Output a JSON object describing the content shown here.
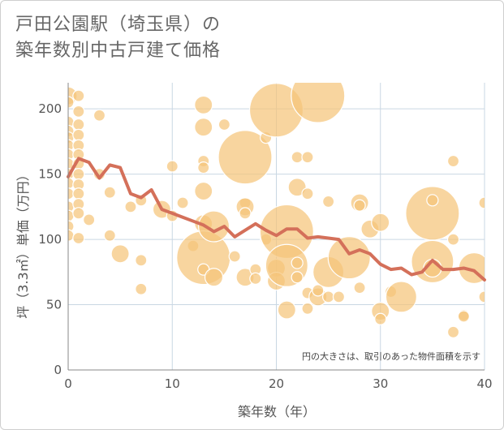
{
  "title_line1": "戸田公園駅（埼玉県）の",
  "title_line2": "築年数別中古戸建て価格",
  "chart_data": {
    "type": "scatter",
    "xlabel": "築年数（年）",
    "ylabel": "坪（3.3㎡）単価（万円）",
    "xlim": [
      0,
      40
    ],
    "ylim": [
      0,
      220
    ],
    "xticks": [
      "0",
      "10",
      "20",
      "30",
      "40"
    ],
    "yticks": [
      "0",
      "50",
      "100",
      "150",
      "200"
    ],
    "note": "円の大きさは、取引のあった物件面積を示す",
    "colors": {
      "bubble": "#f5c57a",
      "bubble_stroke": "#ffffff",
      "line": "#d4705a",
      "grid": "#c9d7e3"
    },
    "bubbles": [
      {
        "x": 0,
        "y": 210,
        "s": 2
      },
      {
        "x": 0,
        "y": 205,
        "s": 1
      },
      {
        "x": 0,
        "y": 190,
        "s": 1
      },
      {
        "x": 0,
        "y": 183,
        "s": 1
      },
      {
        "x": 0,
        "y": 178,
        "s": 1
      },
      {
        "x": 0,
        "y": 172,
        "s": 1
      },
      {
        "x": 0,
        "y": 165,
        "s": 1
      },
      {
        "x": 0,
        "y": 158,
        "s": 1
      },
      {
        "x": 0,
        "y": 150,
        "s": 1
      },
      {
        "x": 0,
        "y": 143,
        "s": 1
      },
      {
        "x": 0,
        "y": 135,
        "s": 1
      },
      {
        "x": 0,
        "y": 125,
        "s": 1
      },
      {
        "x": 0,
        "y": 118,
        "s": 1
      },
      {
        "x": 0,
        "y": 110,
        "s": 1
      },
      {
        "x": 0,
        "y": 103,
        "s": 1
      },
      {
        "x": 1,
        "y": 210,
        "s": 1
      },
      {
        "x": 1,
        "y": 198,
        "s": 1
      },
      {
        "x": 1,
        "y": 188,
        "s": 1
      },
      {
        "x": 1,
        "y": 180,
        "s": 1
      },
      {
        "x": 1,
        "y": 172,
        "s": 1
      },
      {
        "x": 1,
        "y": 165,
        "s": 1
      },
      {
        "x": 1,
        "y": 158,
        "s": 1
      },
      {
        "x": 1,
        "y": 150,
        "s": 1
      },
      {
        "x": 1,
        "y": 142,
        "s": 1
      },
      {
        "x": 1,
        "y": 135,
        "s": 1
      },
      {
        "x": 1,
        "y": 127,
        "s": 1
      },
      {
        "x": 1,
        "y": 120,
        "s": 1
      },
      {
        "x": 1,
        "y": 101,
        "s": 1
      },
      {
        "x": 2,
        "y": 115,
        "s": 1
      },
      {
        "x": 3,
        "y": 195,
        "s": 1
      },
      {
        "x": 3,
        "y": 150,
        "s": 1
      },
      {
        "x": 4,
        "y": 136,
        "s": 1
      },
      {
        "x": 4,
        "y": 103,
        "s": 1
      },
      {
        "x": 5,
        "y": 89,
        "s": 2
      },
      {
        "x": 6,
        "y": 125,
        "s": 1
      },
      {
        "x": 7,
        "y": 130,
        "s": 1
      },
      {
        "x": 7,
        "y": 84,
        "s": 1
      },
      {
        "x": 7,
        "y": 62,
        "s": 1
      },
      {
        "x": 9,
        "y": 123,
        "s": 2
      },
      {
        "x": 10,
        "y": 156,
        "s": 1
      },
      {
        "x": 10,
        "y": 118,
        "s": 1
      },
      {
        "x": 11,
        "y": 128,
        "s": 1
      },
      {
        "x": 12,
        "y": 95,
        "s": 1
      },
      {
        "x": 13,
        "y": 203,
        "s": 2
      },
      {
        "x": 13,
        "y": 186,
        "s": 2
      },
      {
        "x": 13,
        "y": 160,
        "s": 1
      },
      {
        "x": 13,
        "y": 155,
        "s": 1
      },
      {
        "x": 13,
        "y": 137,
        "s": 2
      },
      {
        "x": 13,
        "y": 112,
        "s": 2
      },
      {
        "x": 13,
        "y": 86,
        "s": 5
      },
      {
        "x": 13,
        "y": 77,
        "s": 1
      },
      {
        "x": 14,
        "y": 110,
        "s": 3
      },
      {
        "x": 14,
        "y": 71,
        "s": 2
      },
      {
        "x": 15,
        "y": 188,
        "s": 1
      },
      {
        "x": 16,
        "y": 87,
        "s": 1
      },
      {
        "x": 17,
        "y": 163,
        "s": 5
      },
      {
        "x": 17,
        "y": 128,
        "s": 1
      },
      {
        "x": 17,
        "y": 125,
        "s": 2
      },
      {
        "x": 17,
        "y": 120,
        "s": 1
      },
      {
        "x": 17,
        "y": 71,
        "s": 2
      },
      {
        "x": 18,
        "y": 77,
        "s": 1
      },
      {
        "x": 18,
        "y": 70,
        "s": 1
      },
      {
        "x": 19,
        "y": 178,
        "s": 1
      },
      {
        "x": 19,
        "y": 100,
        "s": 1
      },
      {
        "x": 20,
        "y": 199,
        "s": 5
      },
      {
        "x": 20,
        "y": 78,
        "s": 2
      },
      {
        "x": 20,
        "y": 68,
        "s": 2
      },
      {
        "x": 21,
        "y": 106,
        "s": 5
      },
      {
        "x": 21,
        "y": 80,
        "s": 4
      },
      {
        "x": 21,
        "y": 46,
        "s": 2
      },
      {
        "x": 22,
        "y": 163,
        "s": 1
      },
      {
        "x": 22,
        "y": 140,
        "s": 2
      },
      {
        "x": 22,
        "y": 82,
        "s": 1
      },
      {
        "x": 22,
        "y": 71,
        "s": 1
      },
      {
        "x": 23,
        "y": 163,
        "s": 1
      },
      {
        "x": 23,
        "y": 135,
        "s": 1
      },
      {
        "x": 23,
        "y": 59,
        "s": 1
      },
      {
        "x": 23,
        "y": 47,
        "s": 1
      },
      {
        "x": 24,
        "y": 210,
        "s": 5
      },
      {
        "x": 24,
        "y": 56,
        "s": 2
      },
      {
        "x": 24,
        "y": 61,
        "s": 1
      },
      {
        "x": 25,
        "y": 129,
        "s": 1
      },
      {
        "x": 25,
        "y": 75,
        "s": 3
      },
      {
        "x": 25,
        "y": 56,
        "s": 1
      },
      {
        "x": 26,
        "y": 56,
        "s": 1
      },
      {
        "x": 27,
        "y": 86,
        "s": 4
      },
      {
        "x": 28,
        "y": 128,
        "s": 2
      },
      {
        "x": 28,
        "y": 126,
        "s": 1
      },
      {
        "x": 28,
        "y": 63,
        "s": 1
      },
      {
        "x": 29,
        "y": 108,
        "s": 2
      },
      {
        "x": 30,
        "y": 113,
        "s": 2
      },
      {
        "x": 30,
        "y": 45,
        "s": 2
      },
      {
        "x": 30,
        "y": 39,
        "s": 1
      },
      {
        "x": 31,
        "y": 60,
        "s": 1
      },
      {
        "x": 32,
        "y": 56,
        "s": 3
      },
      {
        "x": 35,
        "y": 120,
        "s": 5
      },
      {
        "x": 35,
        "y": 130,
        "s": 1
      },
      {
        "x": 35,
        "y": 83,
        "s": 4
      },
      {
        "x": 35,
        "y": 78,
        "s": 2
      },
      {
        "x": 37,
        "y": 160,
        "s": 1
      },
      {
        "x": 37,
        "y": 100,
        "s": 1
      },
      {
        "x": 37,
        "y": 29,
        "s": 1
      },
      {
        "x": 38,
        "y": 42,
        "s": 1
      },
      {
        "x": 38,
        "y": 41,
        "s": 1
      },
      {
        "x": 39,
        "y": 78,
        "s": 3
      },
      {
        "x": 40,
        "y": 128,
        "s": 1
      },
      {
        "x": 40,
        "y": 56,
        "s": 1
      }
    ],
    "line": {
      "x": [
        0,
        1,
        2,
        3,
        4,
        5,
        6,
        7,
        8,
        9,
        10,
        11,
        12,
        13,
        14,
        15,
        16,
        17,
        18,
        19,
        20,
        21,
        22,
        23,
        24,
        25,
        26,
        27,
        28,
        29,
        30,
        31,
        32,
        33,
        34,
        35,
        36,
        37,
        38,
        39,
        40
      ],
      "y": [
        148,
        162,
        159,
        147,
        157,
        155,
        135,
        132,
        138,
        123,
        120,
        117,
        114,
        111,
        106,
        110,
        102,
        107,
        112,
        107,
        103,
        108,
        108,
        101,
        102,
        101,
        100,
        89,
        92,
        89,
        81,
        77,
        78,
        73,
        75,
        84,
        77,
        77,
        78,
        76,
        69
      ]
    }
  }
}
